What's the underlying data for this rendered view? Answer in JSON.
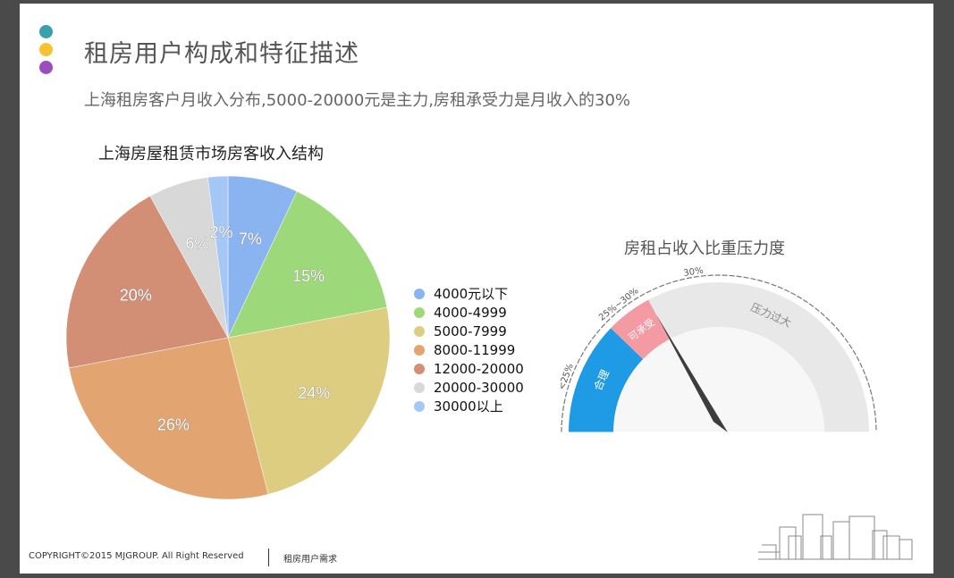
{
  "header": {
    "title": "租房用户构成和特征描述",
    "subtitle": "上海租房客户月收入分布,5000-20000元是主力,房租承受力是月收入的30%",
    "dot_colors": [
      "#3aa0ad",
      "#f5c231",
      "#9b4dbe"
    ]
  },
  "footer": {
    "copyright": "COPYRIGHT©2015 MJGROUP. All Right Reserved",
    "section": "租房用户需求"
  },
  "chart_data": [
    {
      "type": "pie",
      "title": "上海房屋租赁市场房客收入结构",
      "categories": [
        "4000元以下",
        "4000-4999",
        "5000-7999",
        "8000-11999",
        "12000-20000",
        "20000-30000",
        "30000以上"
      ],
      "values": [
        7,
        15,
        24,
        26,
        20,
        6,
        2
      ],
      "labels": [
        "7%",
        "15%",
        "24%",
        "26%",
        "20%",
        "6%",
        "2%"
      ],
      "colors": [
        "#8ab4f0",
        "#9dd97a",
        "#dccd80",
        "#e2a471",
        "#d38e76",
        "#d8d8d8",
        "#a5c7f5"
      ],
      "legend": "right"
    },
    {
      "type": "gauge",
      "title": "房租占收入比重压力度",
      "zones": [
        {
          "label": "合理",
          "range_label": "<25%",
          "color": "#1e9be4"
        },
        {
          "label": "可承受",
          "range_label": "25%~30%",
          "color": "#f39aa2"
        },
        {
          "label": "压力过大",
          "range_label": ">30%",
          "color": "#e8e8e8"
        }
      ],
      "needle_label": "30%"
    }
  ]
}
